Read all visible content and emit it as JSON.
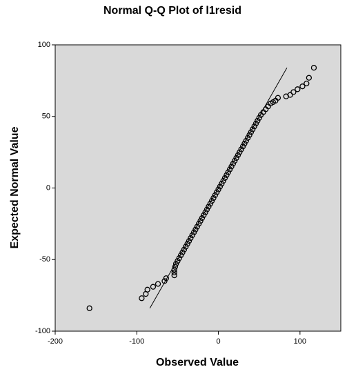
{
  "chart_data": {
    "type": "scatter",
    "title": "Normal Q-Q Plot of l1resid",
    "x_label": "Observed Value",
    "y_label": "Expected Normal Value",
    "xlim": [
      -200,
      150
    ],
    "ylim": [
      -100,
      100
    ],
    "xticks": [
      -200,
      -100,
      0,
      100
    ],
    "yticks": [
      -100,
      -50,
      0,
      50,
      100
    ],
    "background": "#d9d9d9",
    "series": [
      {
        "color": "#000000",
        "x": [
          -158,
          -94,
          -89,
          -87,
          -80,
          -74,
          -66,
          -64,
          -54,
          -54,
          -54,
          -53,
          -52,
          -50,
          -48,
          -46,
          -44,
          -42,
          -40,
          -38,
          -36,
          -34,
          -32,
          -30,
          -28,
          -26,
          -24,
          -22,
          -20,
          -18,
          -16,
          -14,
          -12,
          -10,
          -8,
          -6,
          -4,
          -2,
          0,
          2,
          4,
          6,
          8,
          10,
          12,
          14,
          16,
          18,
          20,
          22,
          24,
          26,
          28,
          30,
          32,
          34,
          36,
          38,
          40,
          42,
          44,
          46,
          48,
          50,
          52,
          55,
          58,
          61,
          64,
          67,
          70,
          73,
          83,
          88,
          92,
          97,
          103,
          108,
          111,
          117
        ],
        "values": [
          -84,
          -77,
          -74,
          -71,
          -69,
          -67,
          -65,
          -63,
          -61,
          -59,
          -57,
          -55,
          -53,
          -51,
          -49,
          -47,
          -45,
          -43,
          -41,
          -39,
          -37,
          -35,
          -33,
          -31,
          -29,
          -27,
          -25,
          -23,
          -21,
          -19,
          -17,
          -15,
          -13,
          -11,
          -9,
          -7,
          -5,
          -3,
          -1,
          1,
          3,
          5,
          7,
          9,
          11,
          13,
          15,
          17,
          19,
          21,
          23,
          25,
          27,
          29,
          31,
          33,
          35,
          37,
          39,
          41,
          43,
          45,
          47,
          49,
          51,
          53,
          55,
          57,
          59,
          60,
          61,
          63,
          64,
          65,
          67,
          69,
          71,
          73,
          77,
          84
        ]
      }
    ],
    "reference_line": {
      "x": [
        -84,
        84
      ],
      "values": [
        -84,
        84
      ]
    }
  }
}
